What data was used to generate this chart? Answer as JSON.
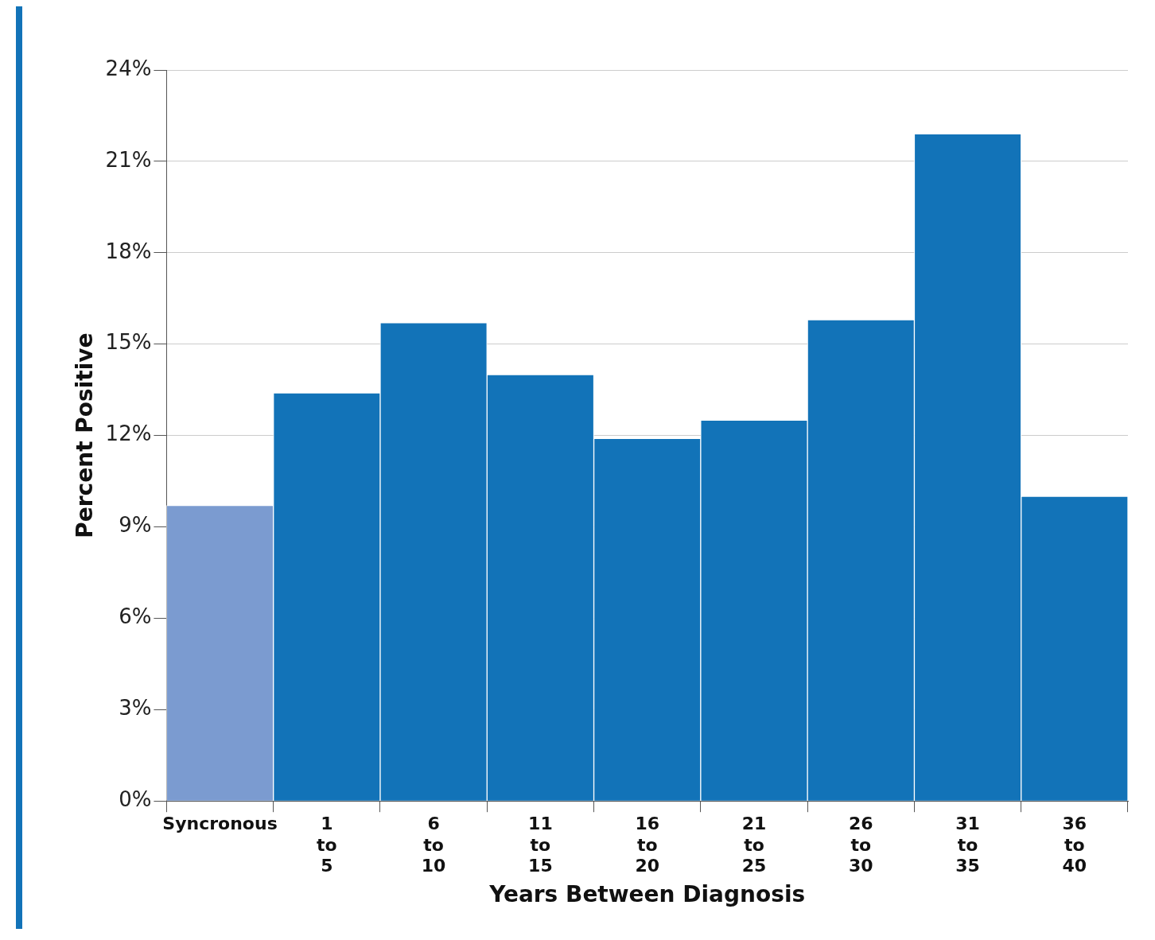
{
  "chart_data": {
    "type": "bar",
    "xlabel": "Years Between Diagnosis",
    "ylabel": "Percent Positive",
    "categories": [
      "Syncronous",
      "1 to 5",
      "6 to 10",
      "11 to 15",
      "16 to 20",
      "21 to 25",
      "26 to 30",
      "31 to 35",
      "36 to 40"
    ],
    "values": [
      9.7,
      13.4,
      15.7,
      14.0,
      11.9,
      12.5,
      15.8,
      21.9,
      10.0
    ],
    "colors": [
      "#7b9bd0",
      "#1273b8",
      "#1273b8",
      "#1273b8",
      "#1273b8",
      "#1273b8",
      "#1273b8",
      "#1273b8",
      "#1273b8"
    ],
    "ylim": [
      0,
      24
    ],
    "yticks": [
      {
        "value": 0,
        "label": "0%"
      },
      {
        "value": 3,
        "label": "3%"
      },
      {
        "value": 6,
        "label": "6%"
      },
      {
        "value": 9,
        "label": "9%"
      },
      {
        "value": 12,
        "label": "12%"
      },
      {
        "value": 15,
        "label": "15%"
      },
      {
        "value": 18,
        "label": "18%"
      },
      {
        "value": 21,
        "label": "21%"
      },
      {
        "value": 24,
        "label": "24%"
      }
    ],
    "grid": "y",
    "legend": false
  }
}
